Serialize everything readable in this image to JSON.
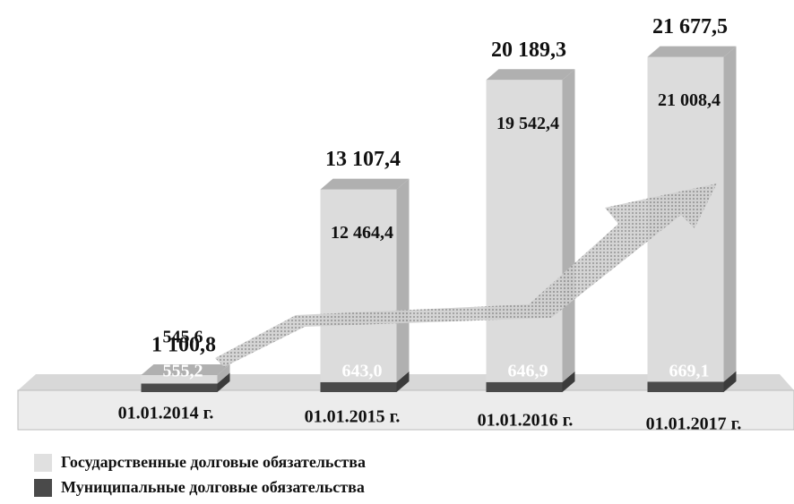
{
  "chart_data": {
    "type": "bar",
    "stacked": true,
    "categories": [
      "01.01.2014 г.",
      "01.01.2015 г.",
      "01.01.2016 г.",
      "01.01.2017 г."
    ],
    "series": [
      {
        "name": "Муниципальные долговые обязательства",
        "color": "#4a4a4a",
        "values": [
          555.2,
          643.0,
          646.9,
          669.1
        ],
        "value_labels": [
          "555,2",
          "643,0",
          "646,9",
          "669,1"
        ]
      },
      {
        "name": "Государственные долговые обязательства",
        "color": "#dcdcdc",
        "values": [
          545.6,
          12464.4,
          19542.4,
          21008.4
        ],
        "value_labels": [
          "545,6",
          "12 464,4",
          "19 542,4",
          "21 008,4"
        ]
      }
    ],
    "totals": [
      1100.8,
      13107.4,
      20189.3,
      21677.5
    ],
    "total_labels": [
      "1 100,8",
      "13 107,4",
      "20 189,3",
      "21 677,5"
    ],
    "ylim": [
      0,
      22000
    ]
  }
}
